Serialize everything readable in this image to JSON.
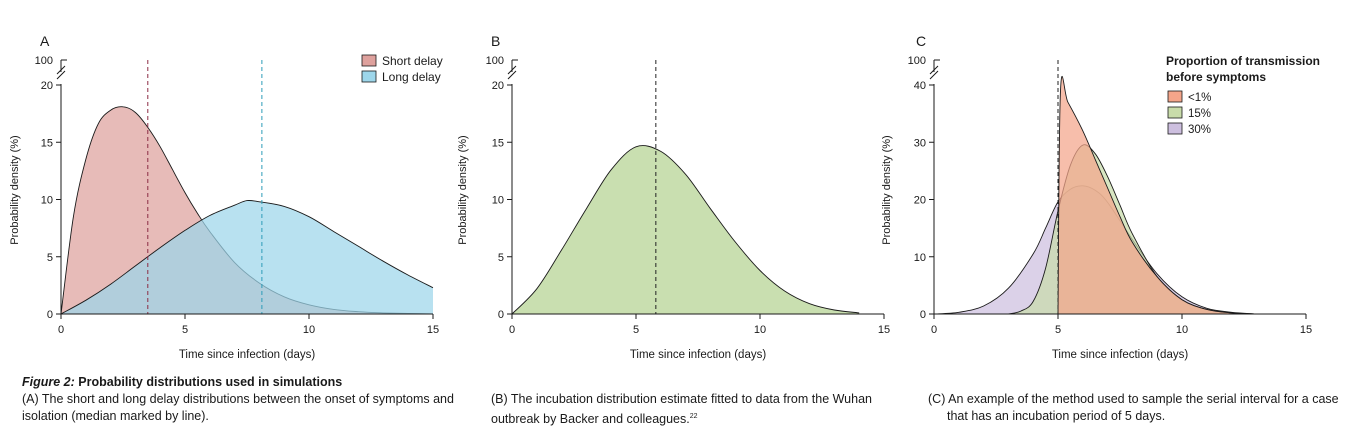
{
  "figure": {
    "caption_label": "Figure 2:",
    "caption_title": "Probability distributions used in simulations",
    "caption_a": "(A) The short and long delay distributions between the onset of symptoms and isolation (median marked by line).",
    "caption_b": "(B) The incubation distribution estimate fitted to data from the  Wuhan outbreak by Backer and colleagues.",
    "caption_b_ref": "22",
    "caption_c_line1": "(C) An example of the method used  to sample the serial interval for a case",
    "caption_c_line2": "that has an incubation period of 5 days."
  },
  "chart_data": [
    {
      "panel": "A",
      "type": "area",
      "xlabel": "Time since infection (days)",
      "ylabel": "Probability density (%)",
      "xlim": [
        0,
        15
      ],
      "ylim": [
        0,
        20
      ],
      "xticks": [
        "0",
        "5",
        "10",
        "15"
      ],
      "yticks": [
        "0",
        "5",
        "10",
        "15",
        "20"
      ],
      "y_break_label": "100",
      "legend_position": "top-right",
      "series": [
        {
          "name": "Short delay",
          "color": "#dea19d",
          "x": [
            0,
            0.5,
            1,
            1.5,
            2,
            2.5,
            3,
            3.5,
            4,
            4.5,
            5,
            5.5,
            6,
            7,
            8,
            9,
            10,
            11,
            12,
            13,
            14,
            15
          ],
          "y": [
            0,
            8.5,
            13.5,
            16.6,
            17.8,
            18.1,
            17.6,
            16.3,
            14.6,
            12.6,
            10.6,
            8.8,
            7.2,
            4.5,
            2.7,
            1.5,
            0.8,
            0.4,
            0.2,
            0.1,
            0.05,
            0
          ]
        },
        {
          "name": "Long delay",
          "color": "#9dd6ea",
          "x": [
            0,
            1,
            2,
            3,
            4,
            5,
            6,
            7,
            7.5,
            8,
            9,
            10,
            11,
            12,
            13,
            14,
            15
          ],
          "y": [
            0,
            1.2,
            2.6,
            4.2,
            5.8,
            7.3,
            8.6,
            9.5,
            9.9,
            9.8,
            9.4,
            8.5,
            7.2,
            5.9,
            4.6,
            3.4,
            2.3
          ]
        }
      ],
      "median_lines": [
        {
          "series": "Short delay",
          "x": 3.5,
          "color": "#8b2c44"
        },
        {
          "series": "Long delay",
          "x": 8.1,
          "color": "#2d9cb8"
        }
      ]
    },
    {
      "panel": "B",
      "type": "area",
      "xlabel": "Time since infection (days)",
      "ylabel": "Probability density (%)",
      "xlim": [
        0,
        15
      ],
      "ylim": [
        0,
        20
      ],
      "xticks": [
        "0",
        "5",
        "10",
        "15"
      ],
      "yticks": [
        "0",
        "5",
        "10",
        "15",
        "20"
      ],
      "y_break_label": "100",
      "series": [
        {
          "name": "",
          "color": "#c9dfb0",
          "x": [
            0,
            1,
            2,
            3,
            4,
            5,
            6,
            7,
            8,
            9,
            10,
            11,
            12,
            13,
            14
          ],
          "y": [
            0,
            2.2,
            5.6,
            9.2,
            12.6,
            14.6,
            14.2,
            12.2,
            9.2,
            6.3,
            3.8,
            2.0,
            0.9,
            0.35,
            0.1
          ]
        }
      ],
      "median_lines": [
        {
          "series": "",
          "x": 5.8,
          "color": "#222222"
        }
      ]
    },
    {
      "panel": "C",
      "type": "area",
      "xlabel": "Time since infection (days)",
      "ylabel": "Probability density (%)",
      "xlim": [
        0,
        15
      ],
      "ylim": [
        0,
        40
      ],
      "xticks": [
        "0",
        "5",
        "10",
        "15"
      ],
      "yticks": [
        "0",
        "10",
        "20",
        "30",
        "40"
      ],
      "y_break_label": "100",
      "legend_title_line1": "Proportion of transmission",
      "legend_title_line2": "before symptoms",
      "legend_position": "top-right",
      "series": [
        {
          "name": "30%",
          "color": "#cdbfdf",
          "x": [
            0,
            1,
            2,
            3,
            4,
            4.5,
            5,
            5.5,
            6,
            6.5,
            7,
            8,
            9,
            10,
            11,
            12,
            13
          ],
          "y": [
            0,
            0.3,
            1.4,
            4.5,
            10.5,
            15,
            19.6,
            21.8,
            22.4,
            21.6,
            19.5,
            13.0,
            7.0,
            3.0,
            1.0,
            0.3,
            0
          ]
        },
        {
          "name": "15%",
          "color": "#c9dcaa",
          "x": [
            3,
            3.5,
            4,
            4.5,
            5,
            5.5,
            6,
            6.5,
            7,
            7.5,
            8,
            9,
            10,
            11,
            12,
            13
          ],
          "y": [
            0,
            0.5,
            2.2,
            8,
            18,
            26,
            29.5,
            28,
            24,
            19,
            14,
            6.5,
            2.5,
            0.8,
            0.2,
            0
          ]
        },
        {
          "name": "<1%",
          "color": "#f4a58a",
          "x": [
            5,
            5.1,
            5.4,
            6,
            6.5,
            7,
            7.5,
            8,
            9,
            10,
            11,
            12,
            13
          ],
          "y": [
            0,
            39,
            37,
            32,
            27,
            22,
            17,
            12.5,
            6.5,
            2.5,
            0.8,
            0.2,
            0
          ]
        }
      ],
      "median_lines": [
        {
          "series": "",
          "x": 5.0,
          "color": "#222222"
        }
      ]
    }
  ]
}
